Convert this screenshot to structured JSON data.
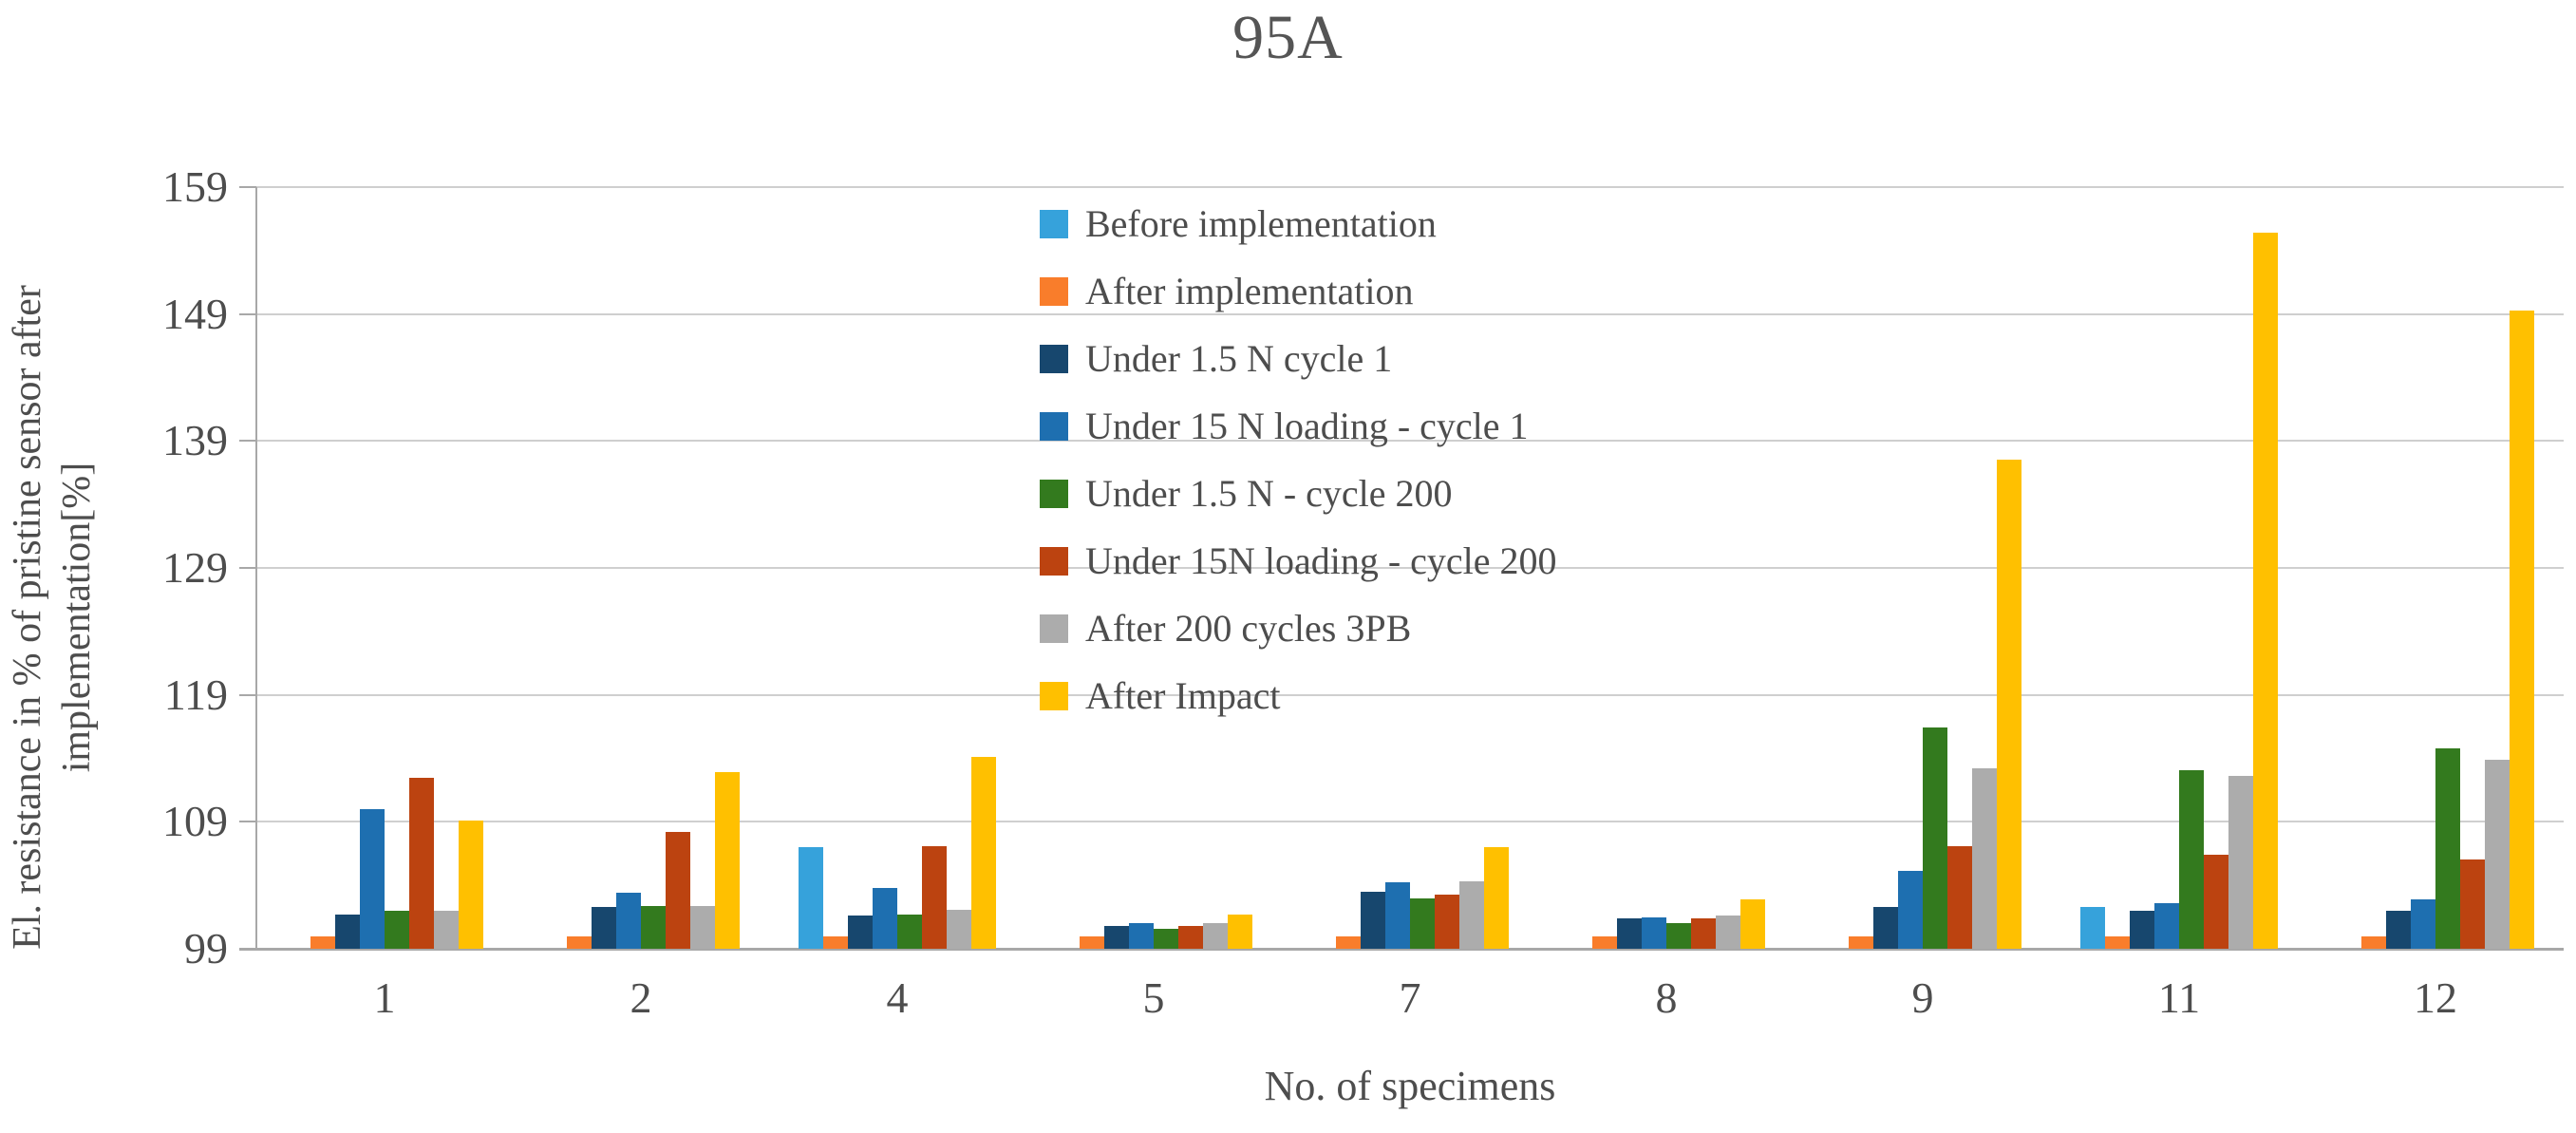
{
  "chart_data": {
    "type": "bar",
    "title": "95A",
    "xlabel": "No. of specimens",
    "ylabel": "El. resistance in % of pristine sensor after implementation[%]",
    "ylabel_lines": [
      "El. resistance in % of pristine sensor after",
      "implementation[%]"
    ],
    "ylim": [
      99,
      159
    ],
    "yticks": [
      99,
      109,
      119,
      129,
      139,
      149,
      159
    ],
    "grid": "horizontal",
    "legend_position": "inside-top-center",
    "categories": [
      "1",
      "2",
      "4",
      "5",
      "7",
      "8",
      "9",
      "11",
      "12"
    ],
    "series": [
      {
        "name": "Before implementation",
        "color": "#36A2DB",
        "values": [
          null,
          null,
          107.0,
          null,
          null,
          null,
          null,
          102.3,
          null
        ]
      },
      {
        "name": "After implementation",
        "color": "#F97D2B",
        "values": [
          100,
          100,
          100,
          100,
          100,
          100,
          100,
          100,
          100
        ]
      },
      {
        "name": "Under 1.5 N cycle 1",
        "color": "#17476E",
        "values": [
          101.7,
          102.3,
          101.6,
          100.8,
          103.5,
          101.4,
          102.3,
          102.0,
          102.0
        ]
      },
      {
        "name": "Under 15 N loading - cycle 1",
        "color": "#1E6FB0",
        "values": [
          110.0,
          103.4,
          103.8,
          101.0,
          104.2,
          101.5,
          105.1,
          102.6,
          102.9
        ]
      },
      {
        "name": "Under 1.5 N - cycle 200",
        "color": "#337A1E",
        "values": [
          102.0,
          102.4,
          101.7,
          100.6,
          103.0,
          101.0,
          116.4,
          113.1,
          114.8
        ]
      },
      {
        "name": "Under 15N loading - cycle 200",
        "color": "#BC4310",
        "values": [
          112.5,
          108.2,
          107.1,
          100.8,
          103.3,
          101.4,
          107.1,
          106.4,
          106.0
        ]
      },
      {
        "name": "After 200 cycles 3PB",
        "color": "#ACACAC",
        "values": [
          102.0,
          102.4,
          102.1,
          101.0,
          104.3,
          101.6,
          113.2,
          112.6,
          113.9
        ]
      },
      {
        "name": "After Impact",
        "color": "#FFC000",
        "values": [
          109.1,
          112.9,
          114.1,
          101.7,
          107.0,
          102.9,
          137.5,
          155.4,
          149.3
        ]
      }
    ]
  }
}
